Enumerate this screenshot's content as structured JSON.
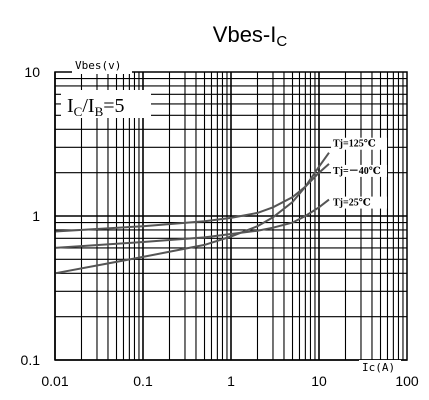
{
  "chart_data": {
    "type": "line",
    "title": "Vbes-I",
    "title_sub": "C",
    "x_scale": "log",
    "y_scale": "log",
    "xlim": [
      0.01,
      100
    ],
    "ylim": [
      0.1,
      10
    ],
    "x_ticks": [
      "0.01",
      "0.1",
      "1",
      "10",
      "100"
    ],
    "y_ticks": [
      "0.1",
      "1",
      "10"
    ],
    "xlabel": "Ic(A)",
    "ylabel": "Vbes(v)",
    "annotation": {
      "prefix": "I",
      "sub1": "C",
      "slash": "/I",
      "sub2": "B",
      "suffix": "=5"
    },
    "grid": true,
    "colors": {
      "axes": "#000000",
      "grid": "#000000",
      "curve": "#555555",
      "label_bg": "#ffffff"
    },
    "series": [
      {
        "name": "Tj=125℃",
        "label_position": "right",
        "x": [
          0.01,
          0.1,
          0.5,
          1,
          2,
          3,
          5,
          7,
          10,
          13
        ],
        "y": [
          0.4,
          0.52,
          0.63,
          0.72,
          0.85,
          0.98,
          1.25,
          1.6,
          2.2,
          2.75
        ]
      },
      {
        "name": "Tj=－40℃",
        "label_position": "right",
        "x": [
          0.01,
          0.1,
          0.5,
          1,
          2,
          3,
          5,
          7,
          10,
          13
        ],
        "y": [
          0.78,
          0.85,
          0.92,
          0.97,
          1.05,
          1.15,
          1.35,
          1.6,
          2.0,
          2.3
        ]
      },
      {
        "name": "Tj=25℃",
        "label_position": "right",
        "x": [
          0.01,
          0.1,
          0.5,
          1,
          2,
          3,
          5,
          7,
          10,
          13
        ],
        "y": [
          0.6,
          0.66,
          0.71,
          0.75,
          0.79,
          0.83,
          0.9,
          1.0,
          1.15,
          1.3
        ]
      }
    ]
  }
}
